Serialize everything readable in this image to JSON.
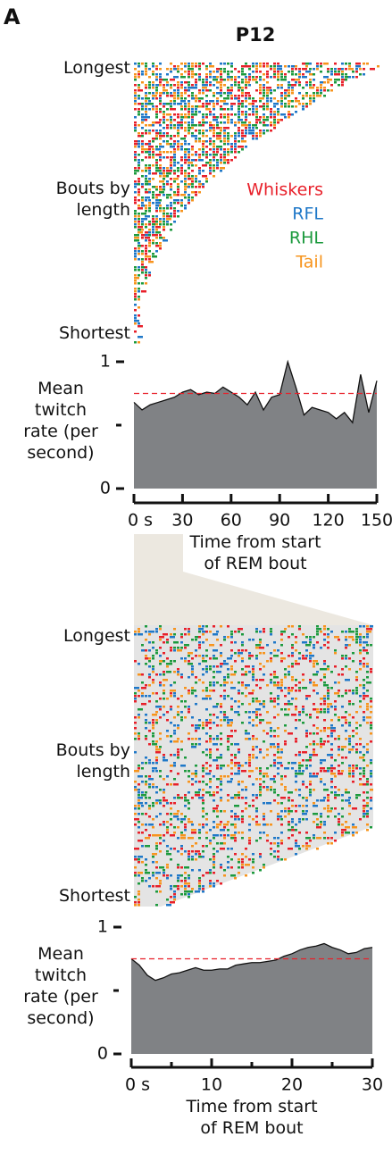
{
  "panel_label": "A",
  "title": "P12",
  "chart_data": [
    {
      "type": "raster",
      "y_labels": [
        "Longest",
        "Bouts by length",
        "Shortest"
      ],
      "series": [
        {
          "name": "Whiskers",
          "color": "#e8202a"
        },
        {
          "name": "RFL",
          "color": "#1f78c8"
        },
        {
          "name": "RHL",
          "color": "#1c9a3e"
        },
        {
          "name": "Tail",
          "color": "#f7941d"
        }
      ]
    },
    {
      "type": "area",
      "ylabel": "Mean twitch rate (per second)",
      "xlabel": "Time from start of REM bout",
      "x": [
        0,
        5,
        10,
        15,
        20,
        25,
        30,
        35,
        40,
        45,
        50,
        55,
        60,
        65,
        70,
        75,
        80,
        85,
        90,
        95,
        100,
        105,
        110,
        115,
        120,
        125,
        130,
        135,
        140,
        145,
        150
      ],
      "values": [
        0.68,
        0.62,
        0.66,
        0.68,
        0.7,
        0.72,
        0.76,
        0.78,
        0.74,
        0.76,
        0.75,
        0.8,
        0.76,
        0.72,
        0.66,
        0.76,
        0.62,
        0.72,
        0.74,
        1.0,
        0.8,
        0.58,
        0.64,
        0.62,
        0.6,
        0.55,
        0.6,
        0.52,
        0.9,
        0.6,
        0.85
      ],
      "color": "#808285",
      "reference_line": 0.75,
      "reference_color": "#e8202a",
      "xlim": [
        0,
        150
      ],
      "xticks": [
        {
          "value": 0,
          "label": "0 s"
        },
        30,
        60,
        90,
        120,
        150
      ],
      "ylim": [
        0,
        1
      ],
      "yticks": [
        0,
        1
      ],
      "yminor_ticks": [
        0.5
      ]
    },
    {
      "type": "raster",
      "y_labels": [
        "Longest",
        "Bouts by length",
        "Shortest"
      ]
    },
    {
      "type": "area",
      "ylabel": "Mean twitch rate (per second)",
      "xlabel": "Time from start of REM bout",
      "x": [
        0,
        1,
        2,
        3,
        4,
        5,
        6,
        7,
        8,
        9,
        10,
        11,
        12,
        13,
        14,
        15,
        16,
        17,
        18,
        19,
        20,
        21,
        22,
        23,
        24,
        25,
        26,
        27,
        28,
        29,
        30
      ],
      "values": [
        0.75,
        0.7,
        0.62,
        0.58,
        0.6,
        0.63,
        0.64,
        0.66,
        0.68,
        0.66,
        0.66,
        0.67,
        0.67,
        0.7,
        0.71,
        0.72,
        0.72,
        0.73,
        0.74,
        0.77,
        0.79,
        0.82,
        0.84,
        0.85,
        0.87,
        0.84,
        0.82,
        0.79,
        0.8,
        0.83,
        0.84
      ],
      "color": "#808285",
      "reference_line": 0.75,
      "reference_color": "#e8202a",
      "xlim": [
        0,
        30
      ],
      "xticks": [
        {
          "value": 0,
          "label": "0 s"
        },
        10,
        20,
        30
      ],
      "xminor_ticks": [
        5,
        15,
        25
      ],
      "ylim": [
        0,
        1
      ],
      "yticks": [
        0,
        1
      ],
      "yminor_ticks": [
        0.5
      ]
    }
  ]
}
